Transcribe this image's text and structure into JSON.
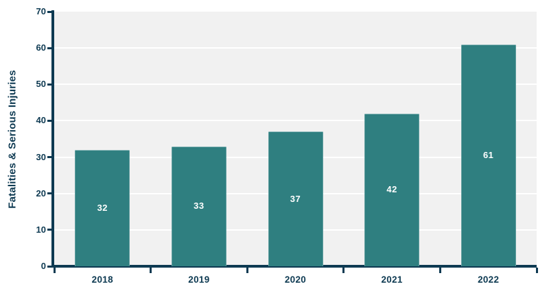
{
  "chart_data": {
    "type": "bar",
    "categories": [
      "2018",
      "2019",
      "2020",
      "2021",
      "2022"
    ],
    "values": [
      32,
      33,
      37,
      42,
      61
    ],
    "bar_labels": [
      "32",
      "33",
      "37",
      "42",
      "61"
    ],
    "title": "",
    "xlabel": "",
    "ylabel": "Fatalities & Serious Injuries",
    "ylim": [
      0,
      70
    ],
    "yticks": [
      0,
      10,
      20,
      30,
      40,
      50,
      60,
      70
    ],
    "grid": true,
    "gridline_values": [
      10,
      20,
      30,
      40,
      50,
      60
    ],
    "legend_position": "none"
  },
  "colors": {
    "bar": "#2f7f80",
    "axis": "#0e3a52",
    "text": "#0e3a52",
    "plot_background": "#f1f1f1",
    "gridline": "#ffffff",
    "bar_label_text": "#ffffff",
    "page_background": "#ffffff"
  }
}
